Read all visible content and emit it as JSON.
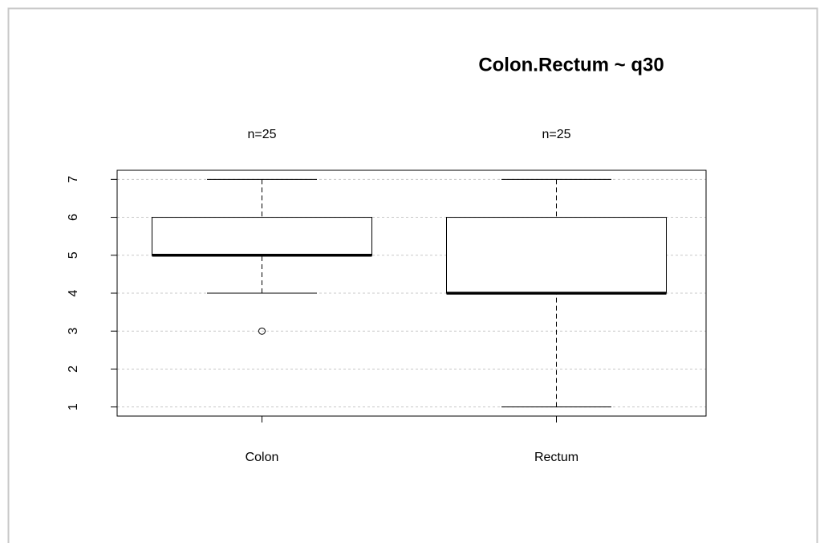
{
  "chart_data": {
    "type": "box",
    "title": "Colon.Rectum ~ q30",
    "categories": [
      "Colon",
      "Rectum"
    ],
    "annotations": [
      "n=25",
      "n=25"
    ],
    "boxes": [
      {
        "min": 4,
        "q1": 5,
        "median": 5,
        "q3": 6,
        "max": 7,
        "outliers": [
          3
        ]
      },
      {
        "min": 1,
        "q1": 4,
        "median": 4,
        "q3": 6,
        "max": 7
      }
    ],
    "color": "#ffffff",
    "ylim": [
      0.76,
      7.24
    ],
    "yticks": [
      1,
      2,
      3,
      4,
      5,
      6,
      7
    ],
    "grid": true
  }
}
